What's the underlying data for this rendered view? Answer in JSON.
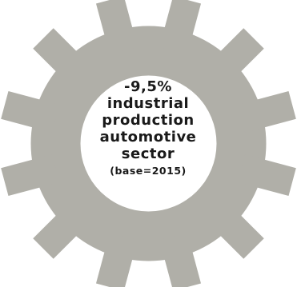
{
  "graphic": {
    "gear_icon": "gear-icon",
    "gear_color": "#b0afa8",
    "center_color": "#ffffff",
    "text_color": "#1a1a1a"
  },
  "headline": {
    "value": "-9,5%",
    "line1": "industrial",
    "line2": "production",
    "line3": "automotive",
    "line4": "sector",
    "base": "(base=2015)"
  }
}
